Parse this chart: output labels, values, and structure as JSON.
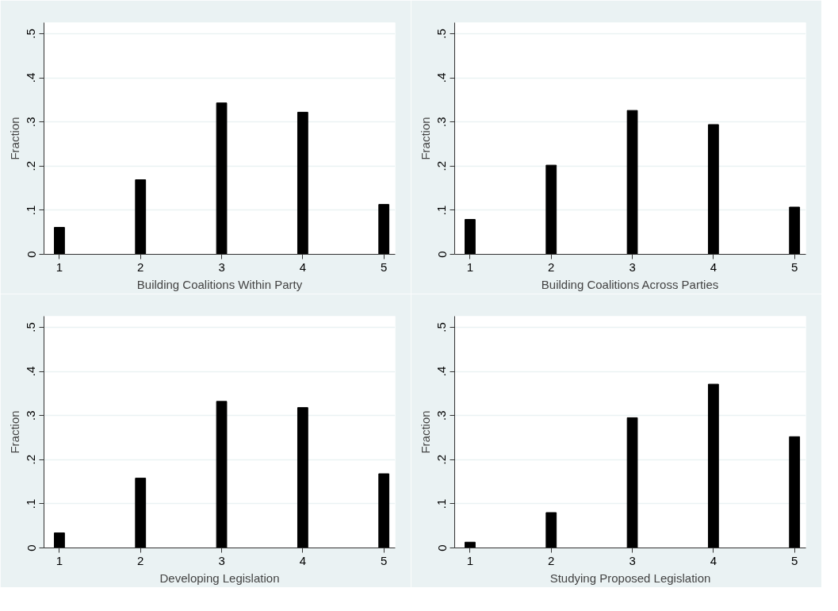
{
  "chart_data": [
    {
      "type": "bar",
      "xlabel": "Building Coalitions Within Party",
      "ylabel": "Fraction",
      "x": [
        1,
        2,
        3,
        4,
        5
      ],
      "values": [
        0.061,
        0.169,
        0.343,
        0.322,
        0.113
      ],
      "color": "#000000",
      "xlim": [
        0.81,
        5.14
      ],
      "ylim": [
        0,
        0.525
      ],
      "xticks": [
        1,
        2,
        3,
        4,
        5
      ],
      "yticks": [
        0,
        {
          "value": 0.1,
          "label": ".1"
        },
        {
          "value": 0.2,
          "label": ".2"
        },
        {
          "value": 0.3,
          "label": ".3"
        },
        {
          "value": 0.4,
          "label": ".4"
        },
        {
          "value": 0.5,
          "label": ".5"
        }
      ],
      "grid": "y"
    },
    {
      "type": "bar",
      "xlabel": "Building Coalitions Across Parties",
      "ylabel": "Fraction",
      "x": [
        1,
        2,
        3,
        4,
        5
      ],
      "values": [
        0.079,
        0.202,
        0.326,
        0.294,
        0.107
      ],
      "color": "#000000",
      "xlim": [
        0.81,
        5.14
      ],
      "ylim": [
        0,
        0.525
      ],
      "xticks": [
        1,
        2,
        3,
        4,
        5
      ],
      "yticks": [
        0,
        {
          "value": 0.1,
          "label": ".1"
        },
        {
          "value": 0.2,
          "label": ".2"
        },
        {
          "value": 0.3,
          "label": ".3"
        },
        {
          "value": 0.4,
          "label": ".4"
        },
        {
          "value": 0.5,
          "label": ".5"
        }
      ],
      "grid": "y"
    },
    {
      "type": "bar",
      "xlabel": "Developing Legislation",
      "ylabel": "Fraction",
      "x": [
        1,
        2,
        3,
        4,
        5
      ],
      "values": [
        0.034,
        0.158,
        0.332,
        0.318,
        0.168
      ],
      "color": "#000000",
      "xlim": [
        0.81,
        5.14
      ],
      "ylim": [
        0,
        0.525
      ],
      "xticks": [
        1,
        2,
        3,
        4,
        5
      ],
      "yticks": [
        0,
        {
          "value": 0.1,
          "label": ".1"
        },
        {
          "value": 0.2,
          "label": ".2"
        },
        {
          "value": 0.3,
          "label": ".3"
        },
        {
          "value": 0.4,
          "label": ".4"
        },
        {
          "value": 0.5,
          "label": ".5"
        }
      ],
      "grid": "y"
    },
    {
      "type": "bar",
      "xlabel": "Studying Proposed Legislation",
      "ylabel": "Fraction",
      "x": [
        1,
        2,
        3,
        4,
        5
      ],
      "values": [
        0.013,
        0.08,
        0.295,
        0.371,
        0.252
      ],
      "color": "#000000",
      "xlim": [
        0.81,
        5.14
      ],
      "ylim": [
        0,
        0.525
      ],
      "xticks": [
        1,
        2,
        3,
        4,
        5
      ],
      "yticks": [
        0,
        {
          "value": 0.1,
          "label": ".1"
        },
        {
          "value": 0.2,
          "label": ".2"
        },
        {
          "value": 0.3,
          "label": ".3"
        },
        {
          "value": 0.4,
          "label": ".4"
        },
        {
          "value": 0.5,
          "label": ".5"
        }
      ],
      "grid": "y"
    }
  ]
}
